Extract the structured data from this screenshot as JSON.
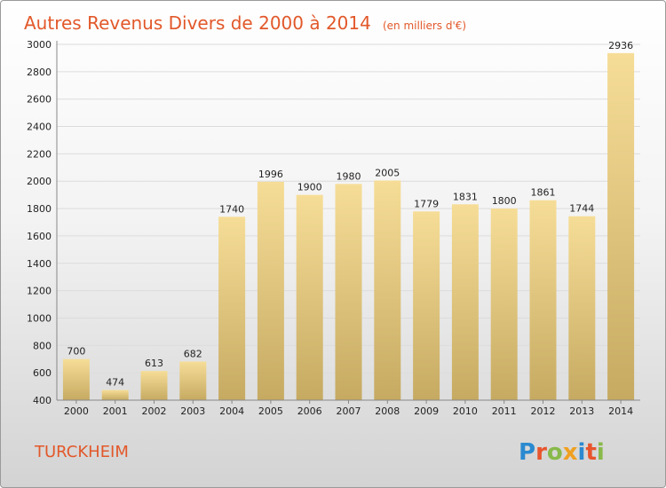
{
  "chart_data": {
    "type": "bar",
    "title": "Autres Revenus Divers de 2000 à 2014",
    "subtitle": "(en milliers d'€)",
    "categories": [
      "2000",
      "2001",
      "2002",
      "2003",
      "2004",
      "2005",
      "2006",
      "2007",
      "2008",
      "2009",
      "2010",
      "2011",
      "2012",
      "2013",
      "2014"
    ],
    "values": [
      700,
      474,
      613,
      682,
      1740,
      1996,
      1900,
      1980,
      2005,
      1779,
      1831,
      1800,
      1861,
      1744,
      2936
    ],
    "ylim": [
      400,
      3000
    ],
    "yticks": [
      400,
      600,
      800,
      1000,
      1200,
      1400,
      1600,
      1800,
      2000,
      2200,
      2400,
      2600,
      2800,
      3000
    ],
    "grid": true,
    "bar_color": "#e6c77e",
    "grid_color": "#dcdcdc"
  },
  "footer": {
    "commune": "TURCKHEIM",
    "logo_text": "Proxiti",
    "logo_colors": [
      "#2b8ad0",
      "#e8552d",
      "#88b94a",
      "#f0a020",
      "#2b8ad0",
      "#e8552d",
      "#88b94a"
    ]
  }
}
